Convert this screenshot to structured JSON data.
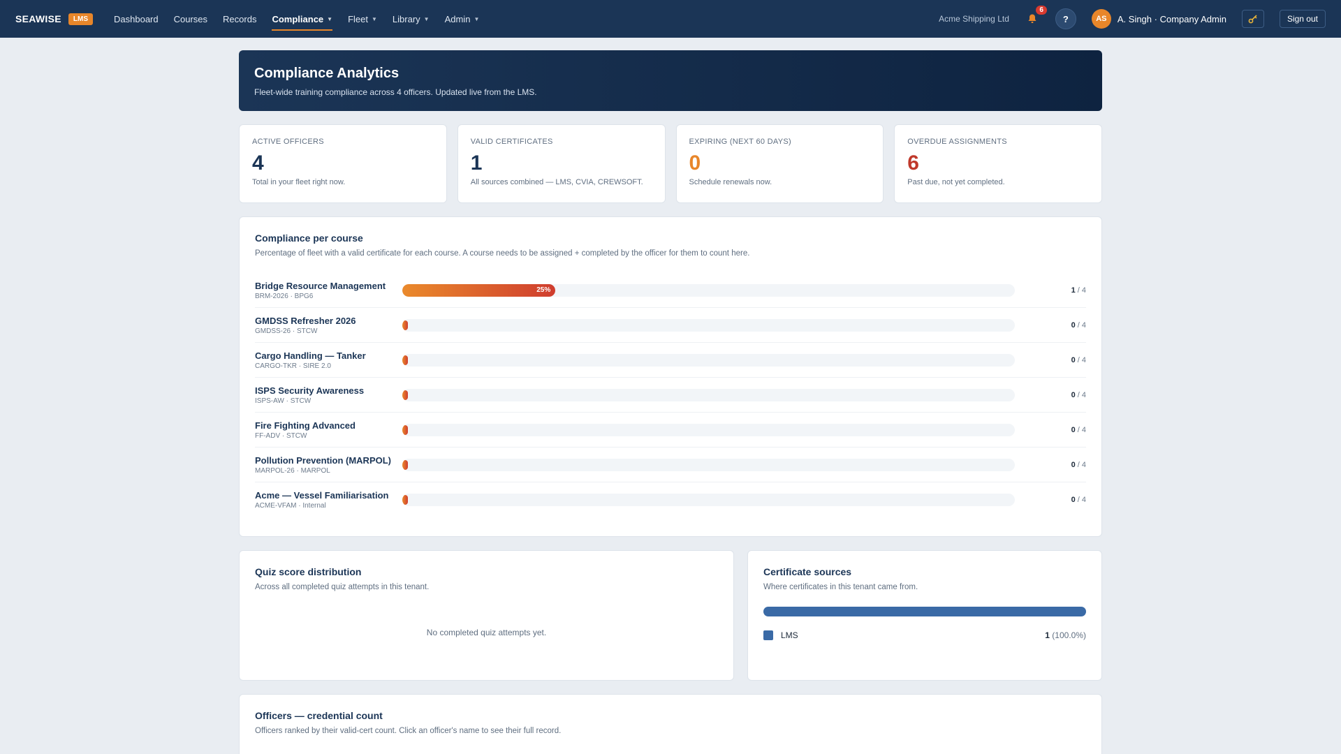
{
  "nav": {
    "brand": "SEAWISE",
    "brand_badge": "LMS",
    "items": [
      {
        "label": "Dashboard"
      },
      {
        "label": "Courses"
      },
      {
        "label": "Records"
      },
      {
        "label": "Compliance"
      },
      {
        "label": "Fleet"
      },
      {
        "label": "Library"
      },
      {
        "label": "Admin"
      }
    ],
    "tenant": "Acme Shipping Ltd",
    "notifications": "6",
    "help": "?",
    "avatar_initials": "AS",
    "user": "A. Singh · Company Admin",
    "signout": "Sign out"
  },
  "hero": {
    "title": "Compliance Analytics",
    "subtitle": "Fleet-wide training compliance across 4 officers. Updated live from the LMS."
  },
  "stats": [
    {
      "label": "ACTIVE OFFICERS",
      "value": "4",
      "desc": "Total in your fleet right now.",
      "color": "#1b3556"
    },
    {
      "label": "VALID CERTIFICATES",
      "value": "1",
      "desc": "All sources combined — LMS, CVIA, CREWSOFT.",
      "color": "#1b3556"
    },
    {
      "label": "EXPIRING (NEXT 60 DAYS)",
      "value": "0",
      "desc": "Schedule renewals now.",
      "color": "#e8862a"
    },
    {
      "label": "OVERDUE ASSIGNMENTS",
      "value": "6",
      "desc": "Past due, not yet completed.",
      "color": "#c0392b"
    }
  ],
  "compliance": {
    "title": "Compliance per course",
    "subtitle": "Percentage of fleet with a valid certificate for each course. A course needs to be assigned + completed by the officer for them to count here.",
    "courses": [
      {
        "name": "Bridge Resource Management",
        "code": "BRM-2026 · BPG6",
        "percent": 25,
        "percent_label": "25%",
        "done": "1",
        "total": "/ 4"
      },
      {
        "name": "GMDSS Refresher 2026",
        "code": "GMDSS-26 · STCW",
        "percent": 0,
        "percent_label": "",
        "done": "0",
        "total": "/ 4"
      },
      {
        "name": "Cargo Handling — Tanker",
        "code": "CARGO-TKR · SIRE 2.0",
        "percent": 0,
        "percent_label": "",
        "done": "0",
        "total": "/ 4"
      },
      {
        "name": "ISPS Security Awareness",
        "code": "ISPS-AW · STCW",
        "percent": 0,
        "percent_label": "",
        "done": "0",
        "total": "/ 4"
      },
      {
        "name": "Fire Fighting Advanced",
        "code": "FF-ADV · STCW",
        "percent": 0,
        "percent_label": "",
        "done": "0",
        "total": "/ 4"
      },
      {
        "name": "Pollution Prevention (MARPOL)",
        "code": "MARPOL-26 · MARPOL",
        "percent": 0,
        "percent_label": "",
        "done": "0",
        "total": "/ 4"
      },
      {
        "name": "Acme — Vessel Familiarisation",
        "code": "ACME-VFAM · Internal",
        "percent": 0,
        "percent_label": "",
        "done": "0",
        "total": "/ 4"
      }
    ]
  },
  "quiz": {
    "title": "Quiz score distribution",
    "subtitle": "Across all completed quiz attempts in this tenant.",
    "empty": "No completed quiz attempts yet."
  },
  "sources": {
    "title": "Certificate sources",
    "subtitle": "Where certificates in this tenant came from.",
    "items": [
      {
        "label": "LMS",
        "count": "1",
        "pct": "(100.0%)",
        "share": 1.0,
        "color": "#3a6aa6"
      }
    ]
  },
  "officers": {
    "title": "Officers — credential count",
    "subtitle": "Officers ranked by their valid-cert count. Click an officer's name to see their full record."
  }
}
